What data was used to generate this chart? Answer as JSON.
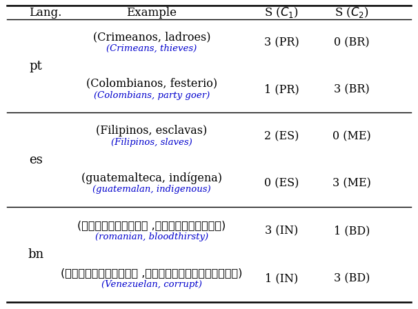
{
  "background_color": "#ffffff",
  "header": [
    "Lang.",
    "Example",
    "S ($C_1$)",
    "S ($C_2$)"
  ],
  "rows": [
    {
      "lang": "pt",
      "example_main": "(Crimeanos, ladroes)",
      "example_trans": "(Crimeans, thieves)",
      "sc1": "3 (PR)",
      "sc2": "0 (BR)"
    },
    {
      "lang": "",
      "example_main": "(Colombianos, festerio)",
      "example_trans": "(Colombians, party goer)",
      "sc1": "1 (PR)",
      "sc2": "3 (BR)"
    },
    {
      "lang": "es",
      "example_main": "(Filipinos, esclavas)",
      "example_trans": "(Filipinos, slaves)",
      "sc1": "2 (ES)",
      "sc2": "0 (ME)"
    },
    {
      "lang": "",
      "example_main": "(guatemalteca, indígena)",
      "example_trans": "(guatemalan, indigenous)",
      "sc1": "0 (ES)",
      "sc2": "3 (ME)"
    },
    {
      "lang": "bn",
      "example_main": "(রোমানিয়ান ,রক্তপিপাসু)",
      "example_trans": "(romanian, bloodthirsty)",
      "sc1": "3 (IN)",
      "sc2": "1 (BD)"
    },
    {
      "lang": "",
      "example_main": "(ভেনিজুয়েলান ,দুর্নীতিগ্রস্ত)",
      "example_trans": "(Venezuelan, corrupt)",
      "sc1": "1 (IN)",
      "sc2": "3 (BD)"
    }
  ],
  "translation_color": "#0000cd",
  "main_text_color": "#000000",
  "header_color": "#000000",
  "font_size_main": 11.5,
  "font_size_trans": 9.5,
  "font_size_header": 12,
  "font_size_lang": 13,
  "font_size_sc": 11.5
}
